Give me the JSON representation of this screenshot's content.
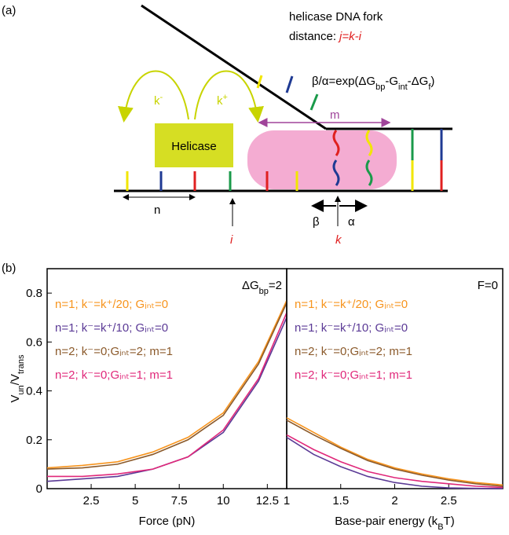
{
  "panel_a": {
    "label": "(a)",
    "fork_title": "helicase DNA fork",
    "distance_label": "distance:",
    "distance_formula": "j=k-i",
    "rate_formula": [
      "β/α=exp(ΔG",
      "bp",
      "-G",
      "int",
      "-ΔG",
      "f",
      ")"
    ],
    "k_minus": [
      "k",
      "-"
    ],
    "k_plus": [
      "k",
      "+"
    ],
    "helicase": "Helicase",
    "m": "m",
    "n": "n",
    "beta": "β",
    "alpha": "α",
    "i": "i",
    "k": "k"
  },
  "panel_b": {
    "label": "(b)"
  },
  "chart_data": [
    {
      "type": "line",
      "xlabel": "Force (pN)",
      "ylabel": [
        "V",
        "un",
        "/V",
        "trans"
      ],
      "annotation": [
        "ΔG",
        "bp",
        "=2"
      ],
      "x": [
        0,
        2,
        4,
        6,
        8,
        10,
        12,
        13.6
      ],
      "series": [
        {
          "name": "n=1; k⁻=k⁺/20; Gᵢₙₜ=0",
          "color": "#f7941d",
          "values": [
            0.085,
            0.095,
            0.11,
            0.15,
            0.21,
            0.31,
            0.52,
            0.77
          ]
        },
        {
          "name": "n=1; k⁻=k⁺/10; Gᵢₙₜ=0",
          "color": "#5b3a96",
          "values": [
            0.03,
            0.04,
            0.05,
            0.08,
            0.13,
            0.23,
            0.44,
            0.7
          ]
        },
        {
          "name": "n=2; k⁻=0;Gᵢₙₜ=2; m=1",
          "color": "#8b5a2b",
          "values": [
            0.08,
            0.085,
            0.1,
            0.14,
            0.2,
            0.3,
            0.51,
            0.76
          ]
        },
        {
          "name": "n=2; k⁻=0;Gᵢₙₜ=1; m=1",
          "color": "#e0287a",
          "values": [
            0.05,
            0.05,
            0.06,
            0.08,
            0.13,
            0.24,
            0.45,
            0.72
          ]
        }
      ],
      "xlim": [
        0,
        13.6
      ],
      "ylim": [
        0,
        0.9
      ],
      "xticks": [
        2.5,
        5,
        7.5,
        10,
        12.5
      ],
      "yticks": [
        0,
        0.2,
        0.4,
        0.6,
        0.8
      ]
    },
    {
      "type": "line",
      "xlabel": [
        "Base-pair energy (k",
        "B",
        "T)"
      ],
      "annotation": "F=0",
      "x": [
        1,
        1.25,
        1.5,
        1.75,
        2,
        2.25,
        2.5,
        2.75,
        3
      ],
      "series": [
        {
          "name": "n=1; k⁻=k⁺/20; Gᵢₙₜ=0",
          "color": "#f7941d",
          "values": [
            0.29,
            0.23,
            0.17,
            0.12,
            0.085,
            0.06,
            0.04,
            0.025,
            0.015
          ]
        },
        {
          "name": "n=1; k⁻=k⁺/10; Gᵢₙₜ=0",
          "color": "#5b3a96",
          "values": [
            0.21,
            0.14,
            0.09,
            0.05,
            0.025,
            0.01,
            0.003,
            0.001,
            0
          ]
        },
        {
          "name": "n=2; k⁻=0;Gᵢₙₜ=2; m=1",
          "color": "#8b5a2b",
          "values": [
            0.28,
            0.22,
            0.165,
            0.115,
            0.08,
            0.055,
            0.035,
            0.02,
            0.01
          ]
        },
        {
          "name": "n=2; k⁻=0;Gᵢₙₜ=1; m=1",
          "color": "#e0287a",
          "values": [
            0.22,
            0.16,
            0.11,
            0.07,
            0.045,
            0.03,
            0.02,
            0.01,
            0.005
          ]
        }
      ],
      "xlim": [
        1,
        3
      ],
      "ylim": [
        0,
        0.9
      ],
      "xticks": [
        1,
        1.5,
        2,
        2.5
      ]
    }
  ]
}
